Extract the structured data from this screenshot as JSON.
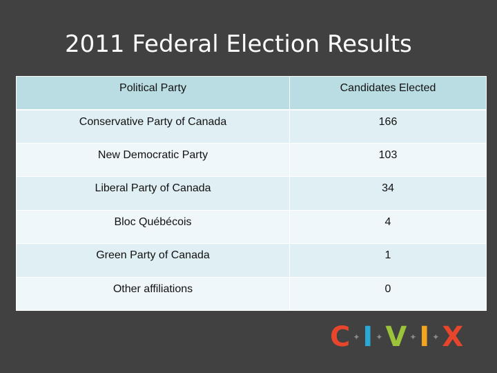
{
  "slide": {
    "title": "2011 Federal Election Results"
  },
  "table": {
    "headers": [
      "Political Party",
      "Candidates Elected"
    ],
    "rows": [
      {
        "party": "Conservative Party of Canada",
        "elected": "166"
      },
      {
        "party": "New Democratic Party",
        "elected": "103"
      },
      {
        "party": "Liberal Party of Canada",
        "elected": "34"
      },
      {
        "party": "Bloc Québécois",
        "elected": "4"
      },
      {
        "party": "Green Party of Canada",
        "elected": "1"
      },
      {
        "party": "Other affiliations",
        "elected": "0"
      }
    ]
  },
  "logo": {
    "letters": [
      "C",
      "I",
      "V",
      "I",
      "X"
    ],
    "colors": [
      "#e8462c",
      "#2aa9d6",
      "#9cc43a",
      "#f4a51d",
      "#e8462c"
    ],
    "separator_icon": "maple-leaf-icon"
  }
}
